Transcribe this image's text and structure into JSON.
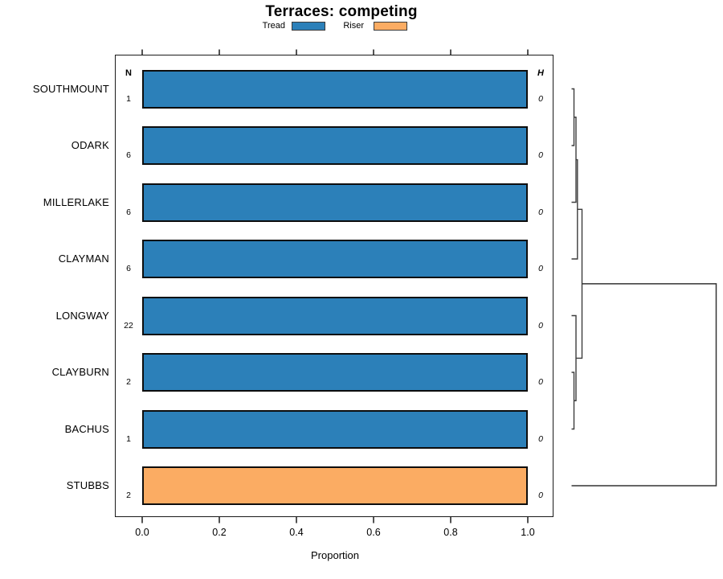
{
  "chart": {
    "title": "Terraces: competing",
    "xlabel": "Proportion",
    "n_header": "N",
    "h_header": "H"
  },
  "legend": {
    "items": [
      {
        "label": "Tread",
        "color": "#2C80B9"
      },
      {
        "label": "Riser",
        "color": "#FBAC63"
      }
    ]
  },
  "axis": {
    "tick_labels": [
      "0.0",
      "0.2",
      "0.4",
      "0.6",
      "0.8",
      "1.0"
    ]
  },
  "chart_data": {
    "type": "bar",
    "orientation": "horizontal",
    "title": "Terraces: competing",
    "xlabel": "Proportion",
    "xlim": [
      0,
      1
    ],
    "x_ticks": [
      0.0,
      0.2,
      0.4,
      0.6,
      0.8,
      1.0
    ],
    "grid": false,
    "legend_position": "top",
    "series_legend": [
      "Tread",
      "Riser"
    ],
    "rows": [
      {
        "label": "SOUTHMOUNT",
        "value": 1.0,
        "segment": "Tread",
        "color": "#2C80B9",
        "n": "1",
        "h": "0"
      },
      {
        "label": "ODARK",
        "value": 1.0,
        "segment": "Tread",
        "color": "#2C80B9",
        "n": "6",
        "h": "0"
      },
      {
        "label": "MILLERLAKE",
        "value": 1.0,
        "segment": "Tread",
        "color": "#2C80B9",
        "n": "6",
        "h": "0"
      },
      {
        "label": "CLAYMAN",
        "value": 1.0,
        "segment": "Tread",
        "color": "#2C80B9",
        "n": "6",
        "h": "0"
      },
      {
        "label": "LONGWAY",
        "value": 1.0,
        "segment": "Tread",
        "color": "#2C80B9",
        "n": "22",
        "h": "0"
      },
      {
        "label": "CLAYBURN",
        "value": 1.0,
        "segment": "Tread",
        "color": "#2C80B9",
        "n": "2",
        "h": "0"
      },
      {
        "label": "BACHUS",
        "value": 1.0,
        "segment": "Tread",
        "color": "#2C80B9",
        "n": "1",
        "h": "0"
      },
      {
        "label": "STUBBS",
        "value": 1.0,
        "segment": "Riser",
        "color": "#FBAC63",
        "n": "2",
        "h": "0"
      }
    ],
    "dendrogram": {
      "position": "right-margin",
      "note": "All labeled merge heights are 0 (H column); the final merge joining STUBBS to the other seven occurs at a large height (wide bracket).",
      "merges": [
        [
          "SOUTHMOUNT",
          "ODARK"
        ],
        [
          "(SOUTHMOUNT,ODARK)",
          "MILLERLAKE"
        ],
        [
          "((SOUTHMOUNT,ODARK),MILLERLAKE)",
          "CLAYMAN"
        ],
        [
          "CLAYBURN",
          "BACHUS"
        ],
        [
          "LONGWAY",
          "(CLAYBURN,BACHUS)"
        ],
        [
          "upper-four-cluster",
          "lower-three-cluster"
        ],
        [
          "all-seven-cluster",
          "STUBBS"
        ]
      ]
    }
  }
}
